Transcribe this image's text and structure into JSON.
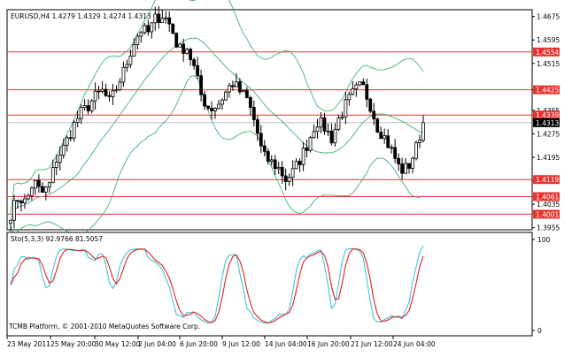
{
  "title": "EURUSD,H4  1.4279 1.4329 1.4274 1.4313",
  "oscillator_title": "Sto(5,3,3) 92.9766 81.5057",
  "copyright": "TCMB Platform, © 2001-2010 MetaQuotes Software Corp.",
  "colors": {
    "background": "#ffffff",
    "frame": "#000000",
    "candle": "#000000",
    "bands": "#3cb371",
    "level_line": "#e8332f",
    "level_badge": "#e8332f",
    "current_badge": "#000000",
    "stoch_main": "#40c4d8",
    "stoch_signal": "#e02020"
  },
  "chart_data": {
    "type": "candlestick",
    "symbol": "EURUSD",
    "timeframe": "H4",
    "ohlc_current": {
      "open": 1.4279,
      "high": 1.4329,
      "low": 1.4274,
      "close": 1.4313
    },
    "price_ticks": [
      "1.4675",
      "1.4595",
      "1.4515",
      "1.4425",
      "1.4355",
      "1.4275",
      "1.4195",
      "1.4115",
      "1.4035",
      "1.3955"
    ],
    "price_range": [
      1.3948,
      1.4698
    ],
    "date_ticks": [
      "23 May 2011",
      "25 May 20:00",
      "30 May 12:00",
      "2 Jun 04:00",
      "6 Jun 20:00",
      "9 Jun 12:00",
      "14 Jun 04:00",
      "16 Jun 20:00",
      "21 Jun 12:00",
      "24 Jun 04:00"
    ],
    "levels": [
      {
        "price": 1.4554,
        "label": "1.4554"
      },
      {
        "price": 1.4425,
        "label": "1.4425"
      },
      {
        "price": 1.4339,
        "label": "1.4339"
      },
      {
        "price": 1.4119,
        "label": "1.4119"
      },
      {
        "price": 1.4061,
        "label": "1.4061"
      },
      {
        "price": 1.4001,
        "label": "1.4001"
      }
    ],
    "current_price": {
      "price": 1.4313,
      "label": "1.4313"
    },
    "path_closes": [
      1.4003,
      1.406,
      1.404,
      1.4115,
      1.407,
      1.4095,
      1.419,
      1.423,
      1.429,
      1.434,
      1.4365,
      1.44,
      1.442,
      1.438,
      1.444,
      1.45,
      1.458,
      1.463,
      1.462,
      1.467,
      1.468,
      1.464,
      1.456,
      1.4575,
      1.45,
      1.44,
      1.436,
      1.437,
      1.441,
      1.445,
      1.442,
      1.439,
      1.431,
      1.42,
      1.418,
      1.416,
      1.412,
      1.4145,
      1.4195,
      1.425,
      1.432,
      1.43,
      1.426,
      1.433,
      1.438,
      1.442,
      1.444,
      1.438,
      1.43,
      1.426,
      1.421,
      1.415,
      1.416,
      1.422,
      1.4313
    ],
    "stochastic": {
      "params": "5,3,3",
      "main": 92.9766,
      "signal": 81.5057,
      "range": [
        0,
        100
      ],
      "ticks": [
        "100",
        "0"
      ]
    }
  }
}
